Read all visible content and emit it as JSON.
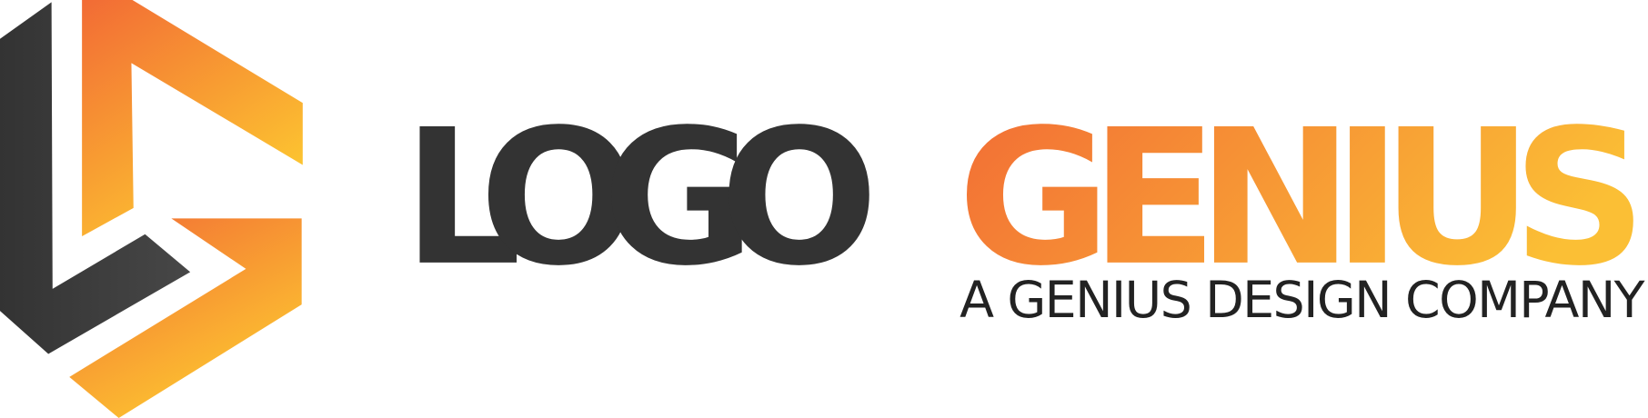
{
  "logo": {
    "word1": "LOGO",
    "word2": "GENIUS",
    "tagline": "A GENIUS DESIGN COMPANY"
  }
}
